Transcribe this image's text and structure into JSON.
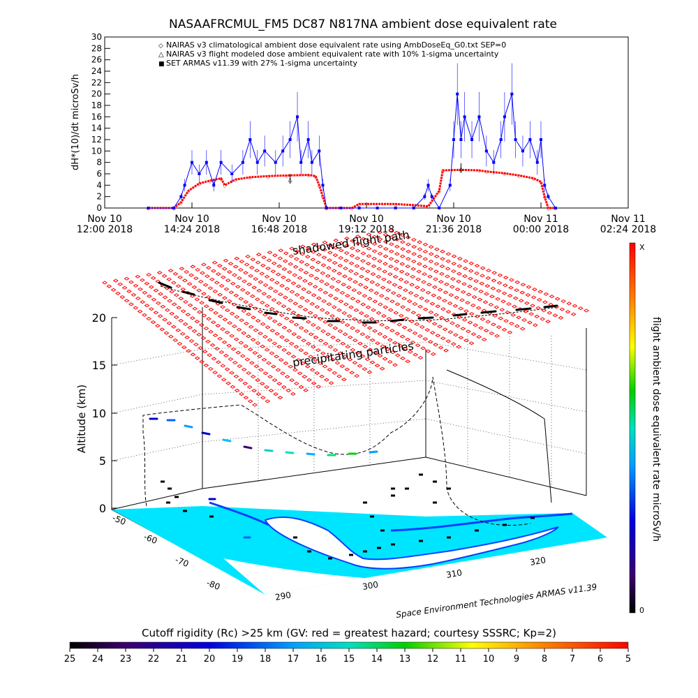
{
  "chart_data": [
    {
      "type": "line",
      "title": "NASAAFRCMUL_FM5 DC87 N817NA ambient dose equivalent rate",
      "ylabel": "dH*(10)/dt microSv/h",
      "ylim": [
        0,
        30
      ],
      "y_ticks": [
        "0",
        "2",
        "4",
        "6",
        "8",
        "10",
        "12",
        "14",
        "16",
        "18",
        "20",
        "22",
        "24",
        "26",
        "28",
        "30"
      ],
      "x_ticks": [
        {
          "date": "Nov 10",
          "time": "12:00 2018"
        },
        {
          "date": "Nov 10",
          "time": "14:24 2018"
        },
        {
          "date": "Nov 10",
          "time": "16:48 2018"
        },
        {
          "date": "Nov 10",
          "time": "19:12 2018"
        },
        {
          "date": "Nov 10",
          "time": "21:36 2018"
        },
        {
          "date": "Nov 11",
          "time": "00:00 2018"
        },
        {
          "date": "Nov 11",
          "time": "02:24 2018"
        }
      ],
      "x_hours": [
        12.0,
        14.4,
        16.8,
        19.2,
        21.6,
        24.0,
        26.4
      ],
      "legend": [
        {
          "symbol": "◇",
          "color": "#ff0000",
          "label": "NAIRAS v3 climatological ambient dose equivalent rate using AmbDoseEq_G0.txt SEP=0"
        },
        {
          "symbol": "△",
          "color": "#000000",
          "label": "NAIRAS v3 flight modeled dose ambient equivalent rate with 10% 1-sigma uncertainty"
        },
        {
          "symbol": "■",
          "color": "#0000ff",
          "label": "SET ARMAS v11.39 with 27% 1-sigma uncertainty"
        }
      ],
      "series": [
        {
          "name": "NAIRAS v3 climatological ambient dose equivalent rate using AmbDoseEq_G0.txt SEP=0",
          "color": "#ff0000",
          "points": [
            [
              13.2,
              0
            ],
            [
              13.9,
              0
            ],
            [
              14.1,
              1
            ],
            [
              14.3,
              3
            ],
            [
              14.6,
              4.3
            ],
            [
              14.9,
              4.8
            ],
            [
              15.2,
              5.2
            ],
            [
              15.3,
              4.0
            ],
            [
              15.6,
              5.0
            ],
            [
              16.0,
              5.4
            ],
            [
              16.5,
              5.6
            ],
            [
              17.0,
              5.7
            ],
            [
              17.6,
              5.8
            ],
            [
              17.8,
              5.6
            ],
            [
              17.9,
              4
            ],
            [
              18.0,
              2
            ],
            [
              18.1,
              0
            ],
            [
              18.8,
              0
            ],
            [
              19.0,
              0.7
            ],
            [
              20.0,
              0.7
            ],
            [
              20.5,
              0.5
            ],
            [
              20.9,
              0.3
            ],
            [
              21.2,
              3
            ],
            [
              21.3,
              6.6
            ],
            [
              21.8,
              6.7
            ],
            [
              22.3,
              6.6
            ],
            [
              22.5,
              6.4
            ],
            [
              23.0,
              6.1
            ],
            [
              23.4,
              5.7
            ],
            [
              23.8,
              5.2
            ],
            [
              24.0,
              4.6
            ],
            [
              24.1,
              2
            ],
            [
              24.2,
              0
            ],
            [
              24.4,
              0
            ]
          ]
        },
        {
          "name": "NAIRAS v3 flight modeled dose ambient equivalent rate with 10% 1-sigma uncertainty",
          "color": "#000000",
          "points": [
            [
              17.1,
              5.1
            ],
            [
              21.8,
              7.0
            ]
          ]
        },
        {
          "name": "SET ARMAS v11.39 with 27% 1-sigma uncertainty",
          "color": "#0000ff",
          "points": [
            [
              13.2,
              0
            ],
            [
              13.9,
              0
            ],
            [
              14.1,
              2
            ],
            [
              14.2,
              4
            ],
            [
              14.4,
              8
            ],
            [
              14.6,
              6
            ],
            [
              14.8,
              8
            ],
            [
              15.0,
              4
            ],
            [
              15.2,
              8
            ],
            [
              15.5,
              6
            ],
            [
              15.8,
              8
            ],
            [
              16.0,
              12
            ],
            [
              16.2,
              8
            ],
            [
              16.4,
              10
            ],
            [
              16.7,
              8
            ],
            [
              16.9,
              10
            ],
            [
              17.1,
              12
            ],
            [
              17.3,
              16
            ],
            [
              17.4,
              8
            ],
            [
              17.6,
              12
            ],
            [
              17.7,
              8
            ],
            [
              17.9,
              10
            ],
            [
              18.0,
              4
            ],
            [
              18.1,
              0
            ],
            [
              18.5,
              0
            ],
            [
              19.0,
              0
            ],
            [
              19.5,
              0
            ],
            [
              20.0,
              0
            ],
            [
              20.5,
              0
            ],
            [
              20.8,
              2
            ],
            [
              20.9,
              4
            ],
            [
              21.0,
              2
            ],
            [
              21.2,
              0
            ],
            [
              21.5,
              4
            ],
            [
              21.6,
              12
            ],
            [
              21.7,
              20
            ],
            [
              21.8,
              12
            ],
            [
              21.9,
              16
            ],
            [
              22.1,
              12
            ],
            [
              22.3,
              16
            ],
            [
              22.5,
              10
            ],
            [
              22.7,
              8
            ],
            [
              22.9,
              12
            ],
            [
              23.0,
              16
            ],
            [
              23.2,
              20
            ],
            [
              23.3,
              12
            ],
            [
              23.5,
              10
            ],
            [
              23.7,
              12
            ],
            [
              23.9,
              8
            ],
            [
              24.0,
              12
            ],
            [
              24.1,
              4
            ],
            [
              24.2,
              2
            ],
            [
              24.4,
              0
            ]
          ]
        }
      ]
    },
    {
      "type": "scatter",
      "title": "",
      "zlabel": "Altitude (km)",
      "z_ticks": [
        "0",
        "5",
        "10",
        "15",
        "20"
      ],
      "lat_ticks": [
        "-50",
        "-60",
        "-70",
        "-80"
      ],
      "lon_ticks": [
        "290",
        "300",
        "310",
        "320"
      ],
      "annotations": [
        "shadowed flight path",
        "precipitating particles"
      ],
      "credit": "Space Environment Technologies ARMAS v11.39",
      "colorbar_label": "flight ambient dose equivalent rate microSv/h",
      "colorbar_top": "X",
      "colorbar_bottom": "0",
      "surface_color": "#ff0000"
    },
    {
      "type": "heatmap",
      "title": "Cutoff rigidity (Rc) >25 km (GV: red = greatest hazard; courtesy SSSRC; Kp=2)",
      "ticks": [
        "25",
        "24",
        "23",
        "22",
        "21",
        "20",
        "19",
        "18",
        "17",
        "16",
        "15",
        "14",
        "13",
        "12",
        "11",
        "10",
        "9",
        "8",
        "7",
        "6",
        "5"
      ]
    }
  ]
}
